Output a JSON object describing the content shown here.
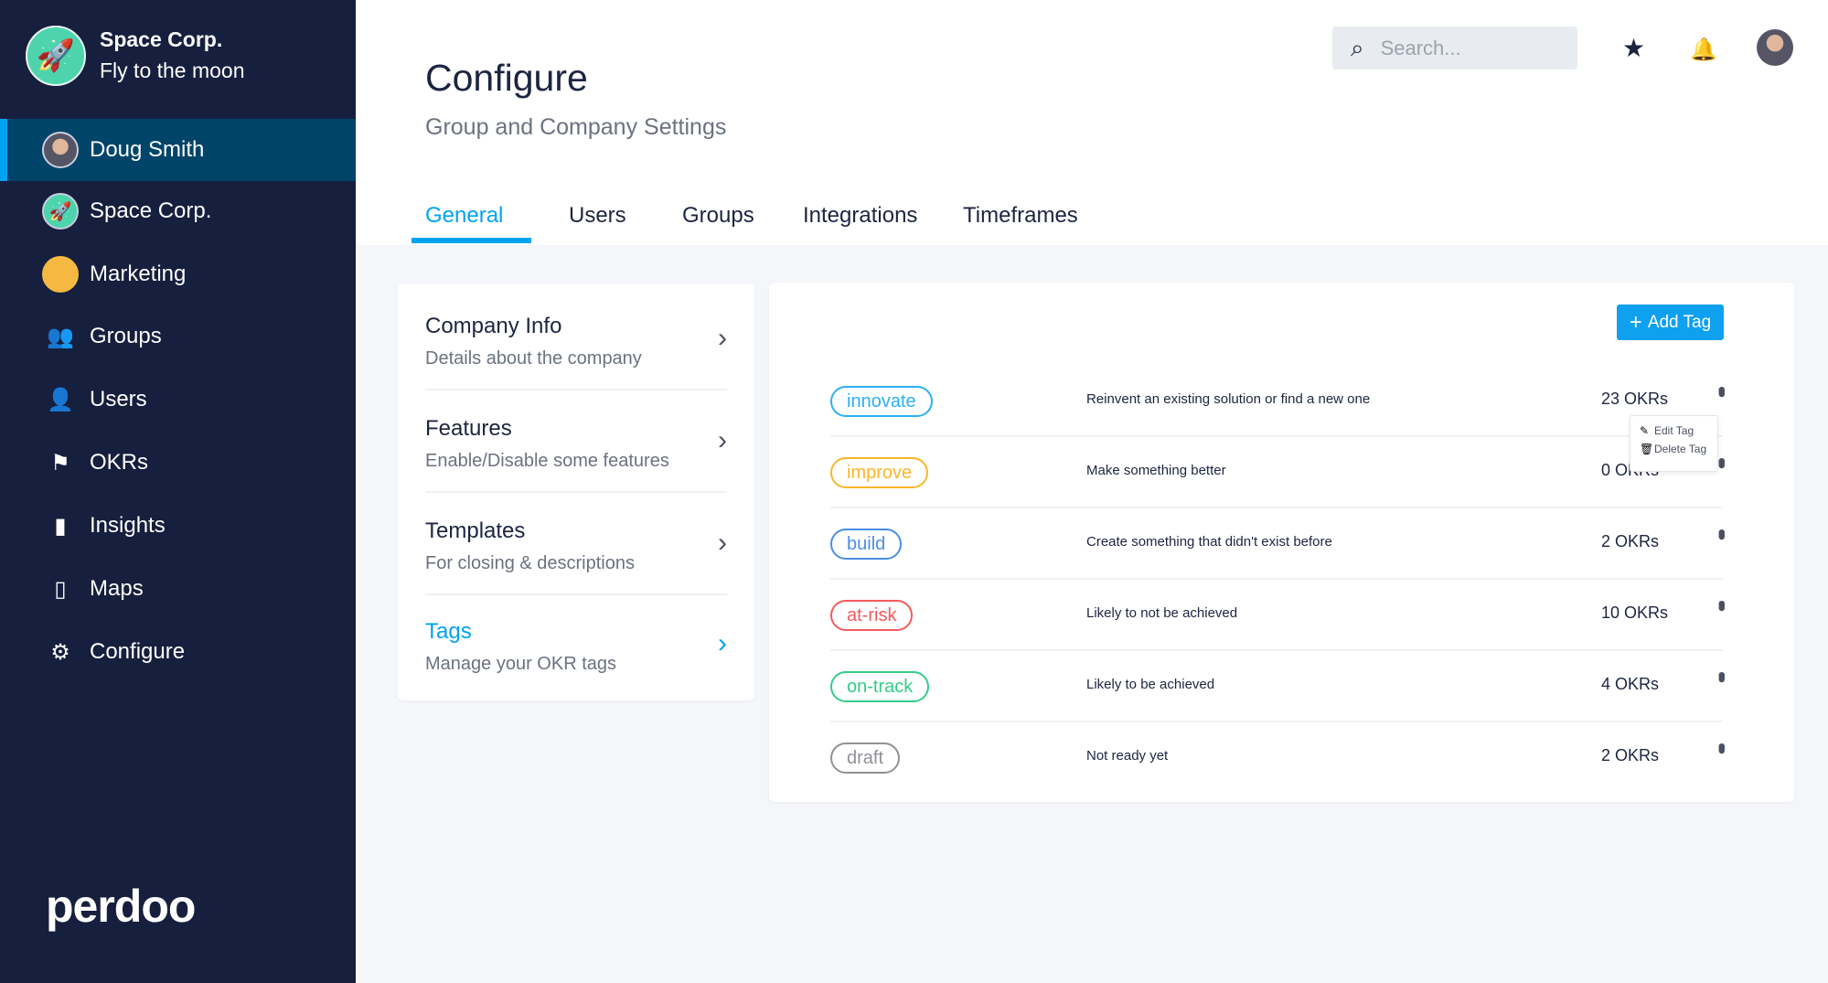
{
  "org": {
    "name": "Space Corp.",
    "tagline": "Fly to the moon"
  },
  "sidebar": {
    "items": [
      {
        "label": "Doug Smith",
        "icon": "avatar",
        "active": true
      },
      {
        "label": "Space Corp.",
        "icon": "rocket-icon"
      },
      {
        "label": "Marketing",
        "icon": "team-avatar"
      },
      {
        "label": "Groups",
        "icon": "groups-icon"
      },
      {
        "label": "Users",
        "icon": "user-icon"
      },
      {
        "label": "OKRs",
        "icon": "flag-icon"
      },
      {
        "label": "Insights",
        "icon": "bar-chart-icon"
      },
      {
        "label": "Maps",
        "icon": "map-icon"
      },
      {
        "label": "Configure",
        "icon": "gear-icon"
      }
    ],
    "brand": "perdoo"
  },
  "header": {
    "title": "Configure",
    "subtitle": "Group and Company Settings",
    "search_placeholder": "Search...",
    "tabs": [
      {
        "label": "General",
        "active": true
      },
      {
        "label": "Users"
      },
      {
        "label": "Groups"
      },
      {
        "label": "Integrations"
      },
      {
        "label": "Timeframes"
      }
    ]
  },
  "settings": [
    {
      "title": "Company Info",
      "subtitle": "Details about the company"
    },
    {
      "title": "Features",
      "subtitle": "Enable/Disable some features"
    },
    {
      "title": "Templates",
      "subtitle": "For closing & descriptions"
    },
    {
      "title": "Tags",
      "subtitle": "Manage your OKR tags",
      "active": true
    }
  ],
  "tags": {
    "add_label": "Add Tag",
    "items": [
      {
        "name": "innovate",
        "color": "#2bb0f5",
        "description": "Reinvent an existing solution or find a new one",
        "count": "23 OKRs"
      },
      {
        "name": "improve",
        "color": "#fbb52b",
        "description": "Make something better",
        "count": "0 OKRs"
      },
      {
        "name": "build",
        "color": "#4a8de6",
        "description": "Create something that didn't exist before",
        "count": "2 OKRs"
      },
      {
        "name": "at-risk",
        "color": "#f5595e",
        "description": "Likely to not be achieved",
        "count": "10 OKRs"
      },
      {
        "name": "on-track",
        "color": "#33cc88",
        "description": "Likely to be achieved",
        "count": "4 OKRs"
      },
      {
        "name": "draft",
        "color": "#8f9196",
        "description": "Not ready yet",
        "count": "2 OKRs"
      }
    ],
    "menu": {
      "edit": "Edit Tag",
      "delete": "Delete Tag"
    }
  },
  "colors": {
    "sidebar": "#161f3d",
    "active": "#00446a",
    "accent": "#00a3f0"
  }
}
